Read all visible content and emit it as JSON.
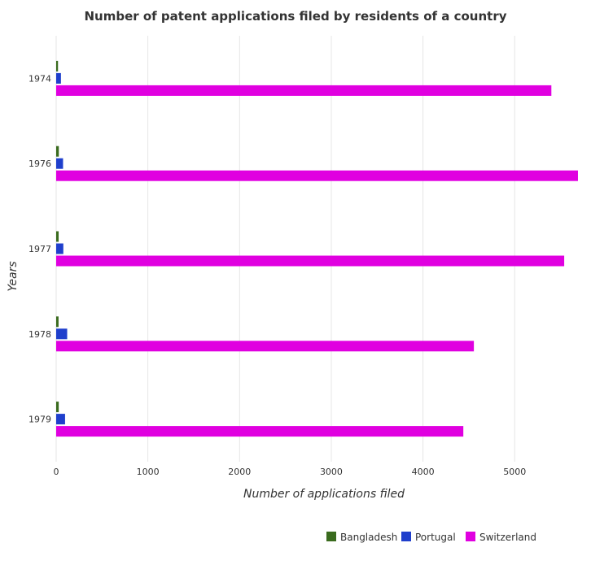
{
  "chart_data": {
    "type": "bar",
    "orientation": "horizontal",
    "title": "Number of patent applications filed by residents of a country",
    "xlabel": "Number of applications filed",
    "ylabel": "Years",
    "categories": [
      "1974",
      "1976",
      "1977",
      "1978",
      "1979"
    ],
    "series": [
      {
        "name": "Bangladesh",
        "color": "#3a6b1e",
        "values": [
          20,
          29,
          27,
          26,
          28
        ]
      },
      {
        "name": "Portugal",
        "color": "#1f3fcc",
        "values": [
          52,
          75,
          78,
          120,
          97
        ]
      },
      {
        "name": "Switzerland",
        "color": "#e000e0",
        "values": [
          5400,
          5690,
          5540,
          4555,
          4440
        ]
      }
    ],
    "x_ticks": [
      0,
      1000,
      2000,
      3000,
      4000,
      5000
    ],
    "xlim": [
      0,
      5850
    ],
    "grid": true,
    "legend_position": "bottom-right"
  }
}
